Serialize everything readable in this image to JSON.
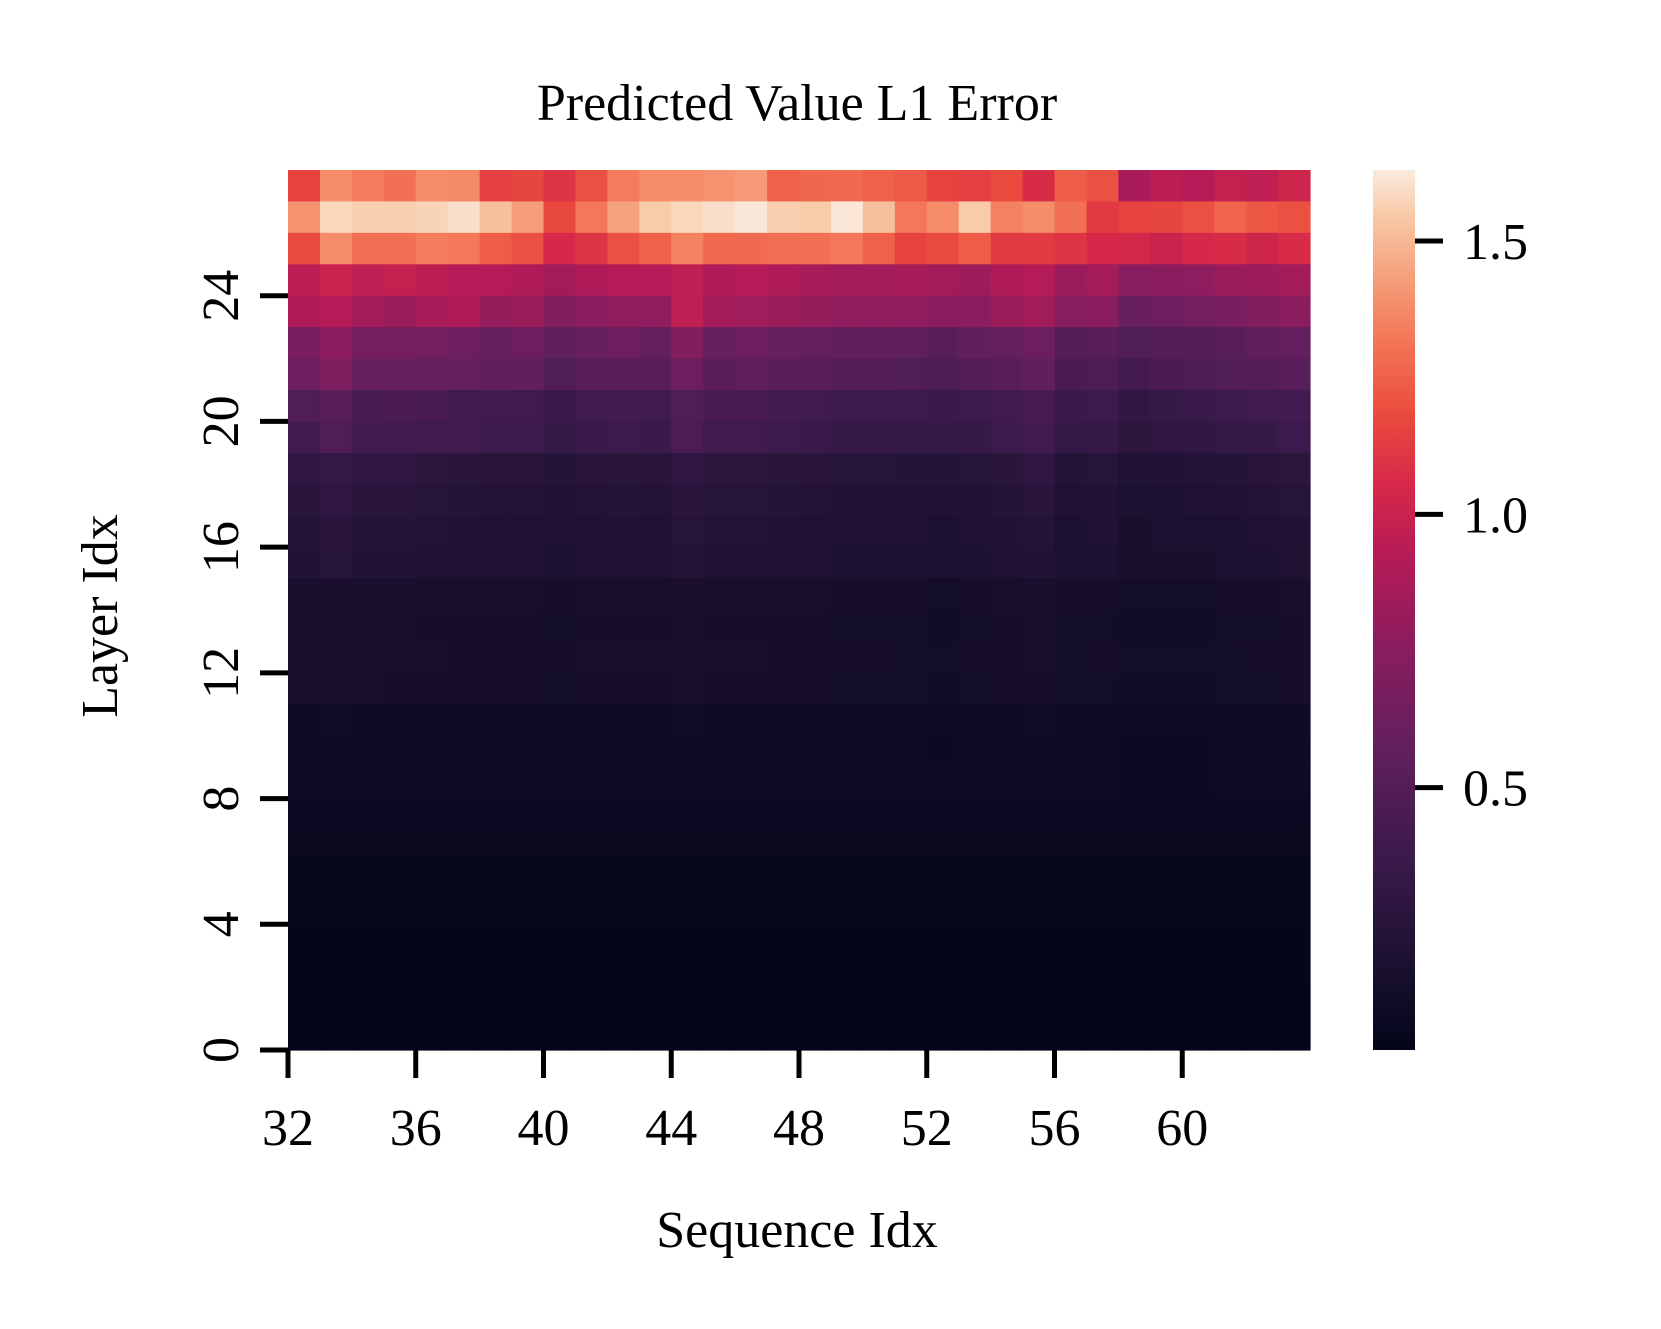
{
  "chart_data": {
    "type": "heatmap",
    "title": "Predicted Value L1 Error",
    "xlabel": "Sequence Idx",
    "ylabel": "Layer Idx",
    "x_start": 32,
    "x_end": 63,
    "y_start": 0,
    "y_end": 27,
    "x_ticks": [
      32,
      36,
      40,
      44,
      48,
      52,
      56,
      60
    ],
    "y_ticks": [
      0,
      4,
      8,
      12,
      16,
      20,
      24
    ],
    "colorbar": {
      "vmin": 0.02,
      "vmax": 1.63,
      "ticks": [
        0.5,
        1.0,
        1.5
      ],
      "tick_labels": [
        "0.5",
        "1.0",
        "1.5"
      ],
      "colormap": "rocket"
    },
    "rows": [
      {
        "layer": 27,
        "values": [
          1.15,
          1.38,
          1.33,
          1.3,
          1.38,
          1.37,
          1.14,
          1.16,
          1.1,
          1.2,
          1.33,
          1.38,
          1.38,
          1.4,
          1.42,
          1.25,
          1.27,
          1.28,
          1.25,
          1.23,
          1.15,
          1.14,
          1.18,
          1.06,
          1.24,
          1.2,
          0.88,
          0.95,
          0.92,
          0.98,
          0.96,
          1.02
        ]
      },
      {
        "layer": 26,
        "values": [
          1.4,
          1.58,
          1.56,
          1.56,
          1.57,
          1.6,
          1.52,
          1.43,
          1.17,
          1.32,
          1.44,
          1.55,
          1.58,
          1.6,
          1.62,
          1.56,
          1.55,
          1.62,
          1.52,
          1.32,
          1.38,
          1.55,
          1.35,
          1.38,
          1.3,
          1.12,
          1.15,
          1.16,
          1.2,
          1.26,
          1.22,
          1.2
        ]
      },
      {
        "layer": 25,
        "values": [
          1.18,
          1.38,
          1.3,
          1.3,
          1.33,
          1.32,
          1.24,
          1.2,
          1.05,
          1.1,
          1.2,
          1.25,
          1.35,
          1.28,
          1.28,
          1.3,
          1.3,
          1.32,
          1.25,
          1.15,
          1.18,
          1.24,
          1.12,
          1.12,
          1.1,
          1.05,
          1.04,
          1.0,
          1.05,
          1.06,
          1.02,
          1.06
        ]
      },
      {
        "layer": 24,
        "values": [
          0.95,
          1.0,
          0.96,
          0.98,
          0.95,
          0.92,
          0.92,
          0.9,
          0.85,
          0.9,
          0.92,
          0.92,
          0.96,
          0.9,
          0.92,
          0.9,
          0.88,
          0.86,
          0.85,
          0.87,
          0.85,
          0.83,
          0.9,
          0.92,
          0.82,
          0.86,
          0.74,
          0.76,
          0.77,
          0.82,
          0.83,
          0.85
        ]
      },
      {
        "layer": 23,
        "values": [
          0.9,
          0.92,
          0.85,
          0.82,
          0.88,
          0.9,
          0.8,
          0.82,
          0.72,
          0.75,
          0.78,
          0.78,
          0.96,
          0.85,
          0.84,
          0.82,
          0.8,
          0.78,
          0.78,
          0.78,
          0.76,
          0.76,
          0.82,
          0.85,
          0.74,
          0.75,
          0.6,
          0.62,
          0.65,
          0.68,
          0.72,
          0.75
        ]
      },
      {
        "layer": 22,
        "values": [
          0.68,
          0.76,
          0.66,
          0.66,
          0.65,
          0.62,
          0.6,
          0.62,
          0.55,
          0.6,
          0.62,
          0.58,
          0.72,
          0.6,
          0.62,
          0.6,
          0.58,
          0.56,
          0.56,
          0.55,
          0.52,
          0.56,
          0.58,
          0.62,
          0.5,
          0.52,
          0.48,
          0.5,
          0.5,
          0.52,
          0.55,
          0.58
        ]
      },
      {
        "layer": 21,
        "values": [
          0.62,
          0.7,
          0.6,
          0.6,
          0.58,
          0.58,
          0.55,
          0.56,
          0.48,
          0.52,
          0.54,
          0.52,
          0.62,
          0.54,
          0.55,
          0.54,
          0.52,
          0.5,
          0.5,
          0.48,
          0.46,
          0.5,
          0.52,
          0.56,
          0.45,
          0.47,
          0.42,
          0.45,
          0.46,
          0.48,
          0.5,
          0.52
        ]
      },
      {
        "layer": 20,
        "values": [
          0.48,
          0.52,
          0.44,
          0.45,
          0.44,
          0.42,
          0.4,
          0.4,
          0.36,
          0.4,
          0.42,
          0.4,
          0.48,
          0.44,
          0.44,
          0.42,
          0.4,
          0.38,
          0.38,
          0.38,
          0.36,
          0.38,
          0.4,
          0.44,
          0.36,
          0.38,
          0.32,
          0.35,
          0.36,
          0.38,
          0.4,
          0.42
        ]
      },
      {
        "layer": 19,
        "values": [
          0.42,
          0.48,
          0.42,
          0.42,
          0.4,
          0.4,
          0.38,
          0.38,
          0.34,
          0.37,
          0.38,
          0.37,
          0.46,
          0.4,
          0.4,
          0.38,
          0.37,
          0.35,
          0.35,
          0.34,
          0.33,
          0.35,
          0.38,
          0.42,
          0.33,
          0.35,
          0.28,
          0.3,
          0.31,
          0.33,
          0.35,
          0.38
        ]
      },
      {
        "layer": 18,
        "values": [
          0.3,
          0.34,
          0.3,
          0.3,
          0.28,
          0.27,
          0.26,
          0.26,
          0.24,
          0.26,
          0.27,
          0.26,
          0.3,
          0.28,
          0.28,
          0.27,
          0.26,
          0.25,
          0.25,
          0.24,
          0.24,
          0.25,
          0.27,
          0.3,
          0.23,
          0.25,
          0.2,
          0.22,
          0.23,
          0.24,
          0.26,
          0.28
        ]
      },
      {
        "layer": 17,
        "values": [
          0.26,
          0.3,
          0.26,
          0.26,
          0.25,
          0.24,
          0.23,
          0.23,
          0.22,
          0.23,
          0.24,
          0.23,
          0.27,
          0.25,
          0.25,
          0.24,
          0.23,
          0.22,
          0.22,
          0.22,
          0.21,
          0.22,
          0.24,
          0.27,
          0.21,
          0.22,
          0.18,
          0.19,
          0.2,
          0.21,
          0.23,
          0.25
        ]
      },
      {
        "layer": 16,
        "values": [
          0.24,
          0.27,
          0.24,
          0.24,
          0.23,
          0.22,
          0.21,
          0.21,
          0.2,
          0.21,
          0.22,
          0.21,
          0.25,
          0.23,
          0.23,
          0.22,
          0.21,
          0.2,
          0.2,
          0.2,
          0.19,
          0.2,
          0.22,
          0.24,
          0.19,
          0.2,
          0.17,
          0.18,
          0.18,
          0.19,
          0.21,
          0.22
        ]
      },
      {
        "layer": 15,
        "values": [
          0.22,
          0.25,
          0.22,
          0.22,
          0.21,
          0.2,
          0.2,
          0.2,
          0.19,
          0.2,
          0.21,
          0.2,
          0.23,
          0.21,
          0.21,
          0.2,
          0.2,
          0.19,
          0.19,
          0.19,
          0.18,
          0.19,
          0.2,
          0.22,
          0.18,
          0.19,
          0.16,
          0.17,
          0.17,
          0.18,
          0.19,
          0.2
        ]
      },
      {
        "layer": 14,
        "values": [
          0.16,
          0.17,
          0.16,
          0.16,
          0.15,
          0.15,
          0.15,
          0.15,
          0.14,
          0.15,
          0.15,
          0.15,
          0.16,
          0.15,
          0.15,
          0.15,
          0.15,
          0.14,
          0.14,
          0.14,
          0.13,
          0.14,
          0.15,
          0.16,
          0.14,
          0.14,
          0.13,
          0.13,
          0.13,
          0.14,
          0.14,
          0.15
        ]
      },
      {
        "layer": 13,
        "values": [
          0.15,
          0.16,
          0.15,
          0.15,
          0.14,
          0.14,
          0.14,
          0.14,
          0.13,
          0.14,
          0.14,
          0.14,
          0.15,
          0.14,
          0.14,
          0.14,
          0.14,
          0.13,
          0.13,
          0.13,
          0.12,
          0.13,
          0.14,
          0.15,
          0.13,
          0.13,
          0.12,
          0.12,
          0.12,
          0.13,
          0.13,
          0.14
        ]
      },
      {
        "layer": 12,
        "values": [
          0.16,
          0.17,
          0.15,
          0.15,
          0.15,
          0.14,
          0.14,
          0.14,
          0.14,
          0.15,
          0.15,
          0.15,
          0.16,
          0.15,
          0.15,
          0.14,
          0.14,
          0.14,
          0.14,
          0.13,
          0.13,
          0.14,
          0.14,
          0.15,
          0.13,
          0.14,
          0.13,
          0.13,
          0.13,
          0.13,
          0.14,
          0.14
        ]
      },
      {
        "layer": 11,
        "values": [
          0.15,
          0.16,
          0.15,
          0.14,
          0.14,
          0.14,
          0.14,
          0.14,
          0.13,
          0.14,
          0.14,
          0.14,
          0.15,
          0.14,
          0.14,
          0.14,
          0.14,
          0.13,
          0.13,
          0.13,
          0.12,
          0.13,
          0.14,
          0.14,
          0.13,
          0.13,
          0.12,
          0.12,
          0.12,
          0.13,
          0.13,
          0.14
        ]
      },
      {
        "layer": 10,
        "values": [
          0.1,
          0.11,
          0.1,
          0.1,
          0.1,
          0.1,
          0.1,
          0.1,
          0.1,
          0.1,
          0.1,
          0.1,
          0.11,
          0.1,
          0.1,
          0.1,
          0.1,
          0.1,
          0.1,
          0.1,
          0.09,
          0.1,
          0.1,
          0.11,
          0.1,
          0.1,
          0.09,
          0.09,
          0.09,
          0.1,
          0.1,
          0.1
        ]
      },
      {
        "layer": 9,
        "values": [
          0.09,
          0.1,
          0.09,
          0.09,
          0.09,
          0.09,
          0.09,
          0.09,
          0.09,
          0.09,
          0.09,
          0.09,
          0.1,
          0.09,
          0.09,
          0.09,
          0.09,
          0.09,
          0.09,
          0.09,
          0.08,
          0.09,
          0.09,
          0.1,
          0.09,
          0.09,
          0.08,
          0.08,
          0.08,
          0.09,
          0.09,
          0.09
        ]
      },
      {
        "layer": 8,
        "values": [
          0.09,
          0.1,
          0.09,
          0.09,
          0.09,
          0.09,
          0.09,
          0.09,
          0.09,
          0.1,
          0.09,
          0.09,
          0.1,
          0.1,
          0.1,
          0.1,
          0.1,
          0.1,
          0.1,
          0.09,
          0.09,
          0.09,
          0.09,
          0.1,
          0.09,
          0.09,
          0.08,
          0.08,
          0.08,
          0.09,
          0.09,
          0.09
        ]
      },
      {
        "layer": 7,
        "values": [
          0.07,
          0.07,
          0.07,
          0.07,
          0.07,
          0.07,
          0.07,
          0.07,
          0.07,
          0.07,
          0.07,
          0.07,
          0.07,
          0.07,
          0.07,
          0.07,
          0.07,
          0.07,
          0.07,
          0.07,
          0.07,
          0.07,
          0.07,
          0.07,
          0.07,
          0.07,
          0.07,
          0.07,
          0.07,
          0.07,
          0.07,
          0.07
        ]
      },
      {
        "layer": 6,
        "values": [
          0.06,
          0.06,
          0.06,
          0.06,
          0.06,
          0.06,
          0.06,
          0.06,
          0.06,
          0.06,
          0.06,
          0.06,
          0.06,
          0.06,
          0.06,
          0.06,
          0.06,
          0.06,
          0.06,
          0.06,
          0.06,
          0.06,
          0.06,
          0.06,
          0.06,
          0.06,
          0.06,
          0.06,
          0.06,
          0.06,
          0.06,
          0.06
        ]
      },
      {
        "layer": 5,
        "values": [
          0.04,
          0.04,
          0.04,
          0.04,
          0.04,
          0.04,
          0.04,
          0.04,
          0.04,
          0.04,
          0.04,
          0.04,
          0.04,
          0.04,
          0.04,
          0.04,
          0.04,
          0.04,
          0.04,
          0.04,
          0.04,
          0.04,
          0.04,
          0.04,
          0.04,
          0.04,
          0.04,
          0.04,
          0.04,
          0.04,
          0.04,
          0.04
        ]
      },
      {
        "layer": 4,
        "values": [
          0.04,
          0.04,
          0.04,
          0.04,
          0.04,
          0.04,
          0.04,
          0.04,
          0.04,
          0.04,
          0.04,
          0.04,
          0.04,
          0.04,
          0.04,
          0.04,
          0.04,
          0.04,
          0.04,
          0.04,
          0.04,
          0.04,
          0.04,
          0.04,
          0.04,
          0.04,
          0.04,
          0.04,
          0.04,
          0.04,
          0.04,
          0.04
        ]
      },
      {
        "layer": 3,
        "values": [
          0.03,
          0.03,
          0.03,
          0.03,
          0.03,
          0.03,
          0.03,
          0.03,
          0.03,
          0.03,
          0.03,
          0.03,
          0.03,
          0.03,
          0.03,
          0.03,
          0.03,
          0.03,
          0.03,
          0.03,
          0.03,
          0.03,
          0.03,
          0.03,
          0.03,
          0.03,
          0.03,
          0.03,
          0.03,
          0.03,
          0.03,
          0.03
        ]
      },
      {
        "layer": 2,
        "values": [
          0.03,
          0.03,
          0.03,
          0.03,
          0.03,
          0.03,
          0.03,
          0.03,
          0.03,
          0.03,
          0.03,
          0.03,
          0.03,
          0.03,
          0.03,
          0.03,
          0.03,
          0.03,
          0.03,
          0.03,
          0.03,
          0.03,
          0.03,
          0.03,
          0.03,
          0.03,
          0.03,
          0.03,
          0.03,
          0.03,
          0.03,
          0.03
        ]
      },
      {
        "layer": 1,
        "values": [
          0.02,
          0.02,
          0.02,
          0.02,
          0.02,
          0.02,
          0.02,
          0.02,
          0.02,
          0.02,
          0.02,
          0.02,
          0.02,
          0.02,
          0.02,
          0.02,
          0.02,
          0.02,
          0.02,
          0.02,
          0.02,
          0.02,
          0.02,
          0.02,
          0.02,
          0.02,
          0.02,
          0.02,
          0.02,
          0.02,
          0.02,
          0.02
        ]
      },
      {
        "layer": 0,
        "values": [
          0.02,
          0.02,
          0.02,
          0.02,
          0.02,
          0.02,
          0.02,
          0.02,
          0.02,
          0.02,
          0.02,
          0.02,
          0.02,
          0.02,
          0.02,
          0.02,
          0.02,
          0.02,
          0.02,
          0.02,
          0.02,
          0.02,
          0.02,
          0.02,
          0.02,
          0.02,
          0.02,
          0.02,
          0.02,
          0.02,
          0.02,
          0.02
        ]
      }
    ]
  }
}
